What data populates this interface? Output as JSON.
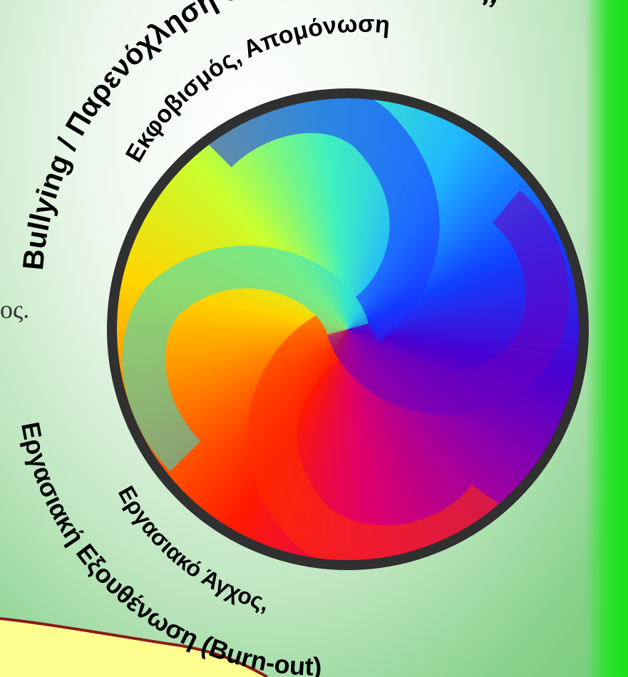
{
  "labels": {
    "outer_top": "Bullying / Παρενόχληση στο χώρο εργασίας,",
    "inner_top": "Εκφοβισμός, Απομόνωση",
    "inner_bottom": "Εργασιακό Άγχος,",
    "outer_bottom": "Εργασιακή Εξουθένωση (Burn-out)",
    "side_fragment": "ος."
  },
  "colors": {
    "ring": "#303030",
    "strip_green": "#18e018",
    "paper_yellow": "#ffff90",
    "paper_border": "#8b1a1a"
  }
}
